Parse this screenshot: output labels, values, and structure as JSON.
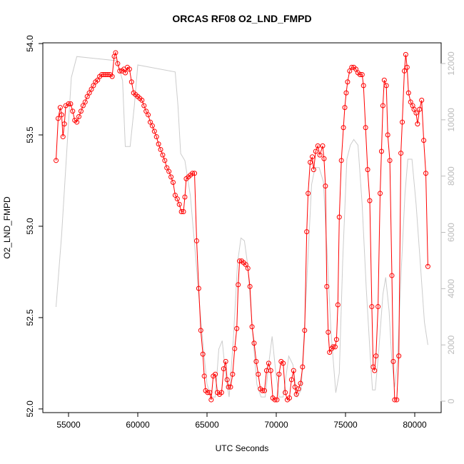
{
  "chart_data": {
    "type": "line",
    "title": "ORCAS RF08 O2_LND_FMPD",
    "x_label": "UTC Seconds",
    "y_label": "O2_LND_FMPD",
    "xlim": [
      53144,
      81907
    ],
    "ylim": [
      51.98,
      54.004
    ],
    "y2lim": [
      -406,
      12736
    ],
    "xticks": [
      55000,
      60000,
      65000,
      70000,
      75000,
      80000
    ],
    "yticks": [
      {
        "value": 52.0,
        "label": "52.0"
      },
      {
        "value": 52.5,
        "label": "52.5"
      },
      {
        "value": 53.0,
        "label": "53.0"
      },
      {
        "value": 53.5,
        "label": "53.5"
      },
      {
        "value": 54.0,
        "label": "54.0"
      }
    ],
    "y2ticks": [
      0,
      2000,
      4000,
      6000,
      8000,
      10000,
      12000
    ],
    "series": [
      {
        "color": "#ff0000",
        "markers": true,
        "x": [
          54100,
          54250,
          54400,
          54500,
          54600,
          54700,
          54800,
          55000,
          55150,
          55300,
          55450,
          55600,
          55750,
          55900,
          56050,
          56200,
          56350,
          56500,
          56650,
          56800,
          56950,
          57100,
          57250,
          57400,
          57550,
          57700,
          57850,
          58000,
          58150,
          58300,
          58400,
          58550,
          58700,
          58850,
          59000,
          59100,
          59250,
          59400,
          59550,
          59700,
          59850,
          60000,
          60150,
          60300,
          60450,
          60600,
          60750,
          60900,
          61050,
          61200,
          61350,
          61500,
          61650,
          61800,
          61950,
          62100,
          62250,
          62400,
          62550,
          62700,
          62850,
          63000,
          63150,
          63300,
          63400,
          63500,
          63650,
          63800,
          63950,
          64100,
          64250,
          64400,
          64550,
          64700,
          64800,
          64900,
          65050,
          65200,
          65300,
          65450,
          65600,
          65750,
          65900,
          66050,
          66200,
          66350,
          66450,
          66550,
          66700,
          66850,
          67000,
          67150,
          67250,
          67350,
          67500,
          67650,
          67800,
          67950,
          68100,
          68250,
          68400,
          68550,
          68700,
          68850,
          69000,
          69150,
          69300,
          69450,
          69600,
          69750,
          69900,
          70050,
          70200,
          70350,
          70500,
          70650,
          70800,
          70950,
          71100,
          71250,
          71350,
          71450,
          71600,
          71750,
          71900,
          72050,
          72200,
          72300,
          72450,
          72600,
          72700,
          72850,
          73000,
          73150,
          73350,
          73450,
          73550,
          73650,
          73750,
          73850,
          74000,
          74100,
          74250,
          74350,
          74450,
          74550,
          74700,
          74850,
          74950,
          75050,
          75150,
          75300,
          75450,
          75600,
          75750,
          75900,
          76050,
          76200,
          76300,
          76450,
          76600,
          76750,
          76900,
          77000,
          77100,
          77200,
          77350,
          77500,
          77600,
          77700,
          77800,
          77950,
          78050,
          78200,
          78350,
          78450,
          78550,
          78700,
          78850,
          79000,
          79100,
          79250,
          79350,
          79450,
          79550,
          79700,
          79850,
          79950,
          80100,
          80200,
          80350,
          80500,
          80650,
          80800,
          80950
        ],
        "values": [
          53.36,
          53.59,
          53.65,
          53.61,
          53.49,
          53.56,
          53.66,
          53.67,
          53.67,
          53.63,
          53.58,
          53.57,
          53.6,
          53.63,
          53.66,
          53.68,
          53.71,
          53.73,
          53.75,
          53.77,
          53.79,
          53.8,
          53.82,
          53.83,
          53.83,
          53.83,
          53.83,
          53.83,
          53.82,
          53.93,
          53.95,
          53.89,
          53.85,
          53.85,
          53.86,
          53.84,
          53.87,
          53.86,
          53.79,
          53.73,
          53.72,
          53.71,
          53.7,
          53.69,
          53.66,
          53.63,
          53.61,
          53.57,
          53.55,
          53.52,
          53.49,
          53.45,
          53.42,
          53.39,
          53.36,
          53.32,
          53.3,
          53.27,
          53.24,
          53.17,
          53.15,
          53.12,
          53.08,
          53.08,
          53.16,
          53.26,
          53.27,
          53.28,
          53.29,
          53.29,
          52.92,
          52.66,
          52.43,
          52.3,
          52.18,
          52.1,
          52.09,
          52.09,
          52.05,
          52.18,
          52.19,
          52.09,
          52.08,
          52.09,
          52.22,
          52.26,
          52.16,
          52.12,
          52.12,
          52.19,
          52.33,
          52.44,
          52.68,
          52.81,
          52.81,
          52.8,
          52.79,
          52.77,
          52.67,
          52.45,
          52.36,
          52.26,
          52.19,
          52.11,
          52.1,
          52.1,
          52.21,
          52.25,
          52.21,
          52.06,
          52.05,
          52.05,
          52.19,
          52.26,
          52.25,
          52.09,
          52.05,
          52.06,
          52.16,
          52.21,
          52.12,
          52.08,
          52.11,
          52.14,
          52.23,
          52.43,
          52.97,
          53.18,
          53.35,
          53.38,
          53.31,
          53.41,
          53.44,
          53.39,
          53.44,
          53.37,
          53.22,
          52.67,
          52.42,
          52.31,
          52.33,
          52.34,
          52.34,
          52.38,
          52.57,
          53.05,
          53.36,
          53.54,
          53.65,
          53.73,
          53.79,
          53.85,
          53.87,
          53.87,
          53.86,
          53.84,
          53.83,
          53.83,
          53.77,
          53.54,
          53.31,
          53.14,
          52.56,
          52.23,
          52.21,
          52.29,
          52.56,
          53.18,
          53.41,
          53.66,
          53.8,
          53.77,
          53.5,
          53.36,
          52.73,
          52.26,
          52.05,
          52.05,
          52.29,
          53.4,
          53.57,
          53.85,
          53.94,
          53.87,
          53.73,
          53.68,
          53.66,
          53.64,
          53.62,
          53.56,
          53.64,
          53.69,
          53.47,
          53.29,
          52.78
        ]
      },
      {
        "color": "#cccccc",
        "axis": "y2",
        "markers": false,
        "x": [
          54100,
          54500,
          55200,
          55600,
          58500,
          58900,
          59100,
          59450,
          59750,
          60000,
          62700,
          62900,
          63100,
          63400,
          63800,
          64200,
          64600,
          65000,
          65300,
          65600,
          65850,
          66100,
          66350,
          66600,
          66900,
          67200,
          67450,
          67700,
          67950,
          68300,
          68600,
          68900,
          69200,
          69500,
          69700,
          69950,
          70200,
          70500,
          70900,
          71200,
          71500,
          71800,
          72200,
          72550,
          72800,
          73100,
          73400,
          73650,
          73950,
          74300,
          74550,
          74800,
          75100,
          75350,
          75600,
          75900,
          76200,
          76500,
          76800,
          76950,
          77150,
          77400,
          77700,
          77900,
          78150,
          78350,
          78550,
          78750,
          79000,
          79300,
          79500,
          79800,
          80100,
          80400,
          80700,
          80950
        ],
        "values": [
          3350,
          5900,
          11500,
          12250,
          12100,
          11400,
          9050,
          9050,
          10500,
          11950,
          11700,
          10500,
          8800,
          8550,
          7300,
          5000,
          2600,
          600,
          150,
          150,
          1850,
          2150,
          900,
          150,
          2200,
          4900,
          5800,
          5700,
          4800,
          2400,
          600,
          150,
          150,
          1500,
          2300,
          1100,
          150,
          150,
          1600,
          1300,
          150,
          400,
          4200,
          7700,
          8300,
          8300,
          7800,
          5500,
          2500,
          300,
          1000,
          5000,
          8600,
          9100,
          9300,
          9100,
          7000,
          4000,
          1500,
          400,
          400,
          1800,
          3800,
          4400,
          3200,
          1400,
          500,
          1400,
          4400,
          7400,
          8600,
          8600,
          7000,
          4900,
          2800,
          2000
        ]
      }
    ]
  }
}
